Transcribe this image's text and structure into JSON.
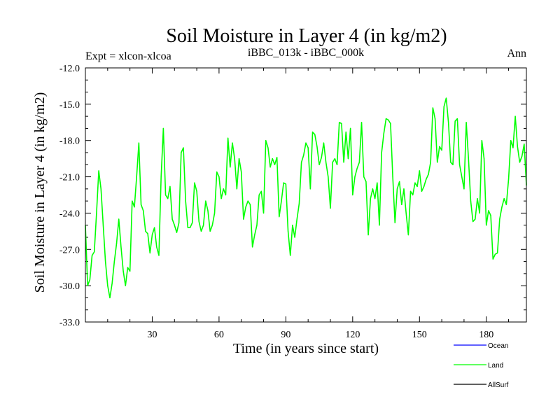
{
  "chart_data": {
    "type": "line",
    "title": "Soil Moisture in Layer 4 (in kg/m2)",
    "subtitle_left": "Expt = xlcon-xlcoa",
    "subtitle_center": "iBBC_013k - iBBC_000k",
    "subtitle_right": "Ann",
    "xlabel": "Time (in years since start)",
    "ylabel": "Soil Moisture in Layer 4 (in kg/m2)",
    "xlim": [
      0,
      198
    ],
    "ylim": [
      -33.0,
      -12.0
    ],
    "xticks": [
      30,
      60,
      90,
      120,
      150,
      180
    ],
    "yticks": [
      -33.0,
      -30.0,
      -27.0,
      -24.0,
      -21.0,
      -18.0,
      -15.0,
      -12.0
    ],
    "xtick_labels": [
      "30",
      "60",
      "90",
      "120",
      "150",
      "180"
    ],
    "ytick_labels": [
      "-33.0",
      "-30.0",
      "-27.0",
      "-24.0",
      "-21.0",
      "-18.0",
      "-15.0",
      "-12.0"
    ],
    "legend": [
      {
        "name": "Ocean",
        "color": "#0000ff"
      },
      {
        "name": "Land",
        "color": "#00ff00"
      },
      {
        "name": "AllSurf",
        "color": "#000000"
      }
    ],
    "series": [
      {
        "name": "Land",
        "color": "#00ff00",
        "x": [
          0,
          1,
          2,
          3,
          4,
          5,
          6,
          7,
          8,
          9,
          10,
          11,
          12,
          13,
          14,
          15,
          16,
          17,
          18,
          19,
          20,
          21,
          22,
          23,
          24,
          25,
          26,
          27,
          28,
          29,
          30,
          31,
          32,
          33,
          34,
          35,
          36,
          37,
          38,
          39,
          40,
          41,
          42,
          43,
          44,
          45,
          46,
          47,
          48,
          49,
          50,
          51,
          52,
          53,
          54,
          55,
          56,
          57,
          58,
          59,
          60,
          61,
          62,
          63,
          64,
          65,
          66,
          67,
          68,
          69,
          70,
          71,
          72,
          73,
          74,
          75,
          76,
          77,
          78,
          79,
          80,
          81,
          82,
          83,
          84,
          85,
          86,
          87,
          88,
          89,
          90,
          91,
          92,
          93,
          94,
          95,
          96,
          97,
          98,
          99,
          100,
          101,
          102,
          103,
          104,
          105,
          106,
          107,
          108,
          109,
          110,
          111,
          112,
          113,
          114,
          115,
          116,
          117,
          118,
          119,
          120,
          121,
          122,
          123,
          124,
          125,
          126,
          127,
          128,
          129,
          130,
          131,
          132,
          133,
          134,
          135,
          136,
          137,
          138,
          139,
          140,
          141,
          142,
          143,
          144,
          145,
          146,
          147,
          148,
          149,
          150,
          151,
          152,
          153,
          154,
          155,
          156,
          157,
          158,
          159,
          160,
          161,
          162,
          163,
          164,
          165,
          166,
          167,
          168,
          169,
          170,
          171,
          172,
          173,
          174,
          175,
          176,
          177,
          178,
          179,
          180,
          181,
          182,
          183,
          184,
          185,
          186,
          187,
          188,
          189,
          190,
          191,
          192,
          193,
          194,
          195,
          196,
          197,
          198
        ],
        "values": [
          -25.0,
          -30.0,
          -29.5,
          -27.5,
          -27.2,
          -24.0,
          -20.5,
          -22.0,
          -25.0,
          -28.0,
          -30.0,
          -31.0,
          -29.8,
          -28.0,
          -26.5,
          -24.5,
          -26.8,
          -28.8,
          -30.0,
          -28.5,
          -28.8,
          -23.0,
          -23.5,
          -21.0,
          -18.2,
          -23.3,
          -23.8,
          -25.5,
          -25.7,
          -27.3,
          -25.8,
          -25.2,
          -26.8,
          -27.5,
          -21.0,
          -17.0,
          -22.5,
          -22.8,
          -21.8,
          -24.5,
          -25.0,
          -25.6,
          -24.8,
          -19.0,
          -18.6,
          -23.0,
          -25.2,
          -25.2,
          -24.8,
          -21.5,
          -22.2,
          -24.7,
          -25.5,
          -25.0,
          -23.0,
          -23.8,
          -25.5,
          -25.0,
          -24.0,
          -20.6,
          -21.0,
          -22.8,
          -22.0,
          -22.5,
          -17.8,
          -20.2,
          -18.2,
          -19.5,
          -22.0,
          -19.5,
          -20.6,
          -24.5,
          -23.5,
          -23.0,
          -23.3,
          -26.8,
          -25.8,
          -25.0,
          -22.5,
          -22.2,
          -24.0,
          -18.0,
          -18.6,
          -20.2,
          -19.5,
          -20.0,
          -19.4,
          -24.3,
          -23.0,
          -21.5,
          -21.6,
          -25.5,
          -27.5,
          -25.0,
          -26.0,
          -24.5,
          -23.2,
          -19.8,
          -19.2,
          -18.2,
          -18.6,
          -22.0,
          -17.3,
          -17.5,
          -18.5,
          -20.0,
          -19.4,
          -18.2,
          -19.8,
          -21.0,
          -23.6,
          -19.8,
          -19.5,
          -20.0,
          -16.5,
          -16.6,
          -19.8,
          -17.3,
          -19.5,
          -17.0,
          -22.5,
          -21.0,
          -20.3,
          -19.8,
          -16.5,
          -21.0,
          -21.4,
          -25.8,
          -22.8,
          -22.0,
          -22.8,
          -21.5,
          -25.0,
          -19.0,
          -17.4,
          -16.2,
          -16.3,
          -16.6,
          -21.0,
          -24.8,
          -22.0,
          -21.4,
          -23.3,
          -22.0,
          -24.0,
          -25.8,
          -22.2,
          -22.5,
          -21.5,
          -21.8,
          -20.5,
          -22.2,
          -21.8,
          -21.2,
          -20.8,
          -19.8,
          -15.3,
          -16.2,
          -19.8,
          -18.5,
          -18.8,
          -15.2,
          -14.5,
          -16.5,
          -19.8,
          -20.0,
          -16.4,
          -16.2,
          -20.0,
          -21.0,
          -22.0,
          -16.5,
          -19.5,
          -23.0,
          -24.7,
          -24.5,
          -22.8,
          -24.0,
          -18.0,
          -19.5,
          -25.0,
          -23.8,
          -24.2,
          -27.8,
          -27.4,
          -27.3,
          -24.5,
          -23.5,
          -22.8,
          -23.3,
          -21.2,
          -18.0,
          -18.6,
          -16.0,
          -18.5,
          -19.8,
          -19.3,
          -18.3,
          -21.7
        ]
      }
    ]
  }
}
